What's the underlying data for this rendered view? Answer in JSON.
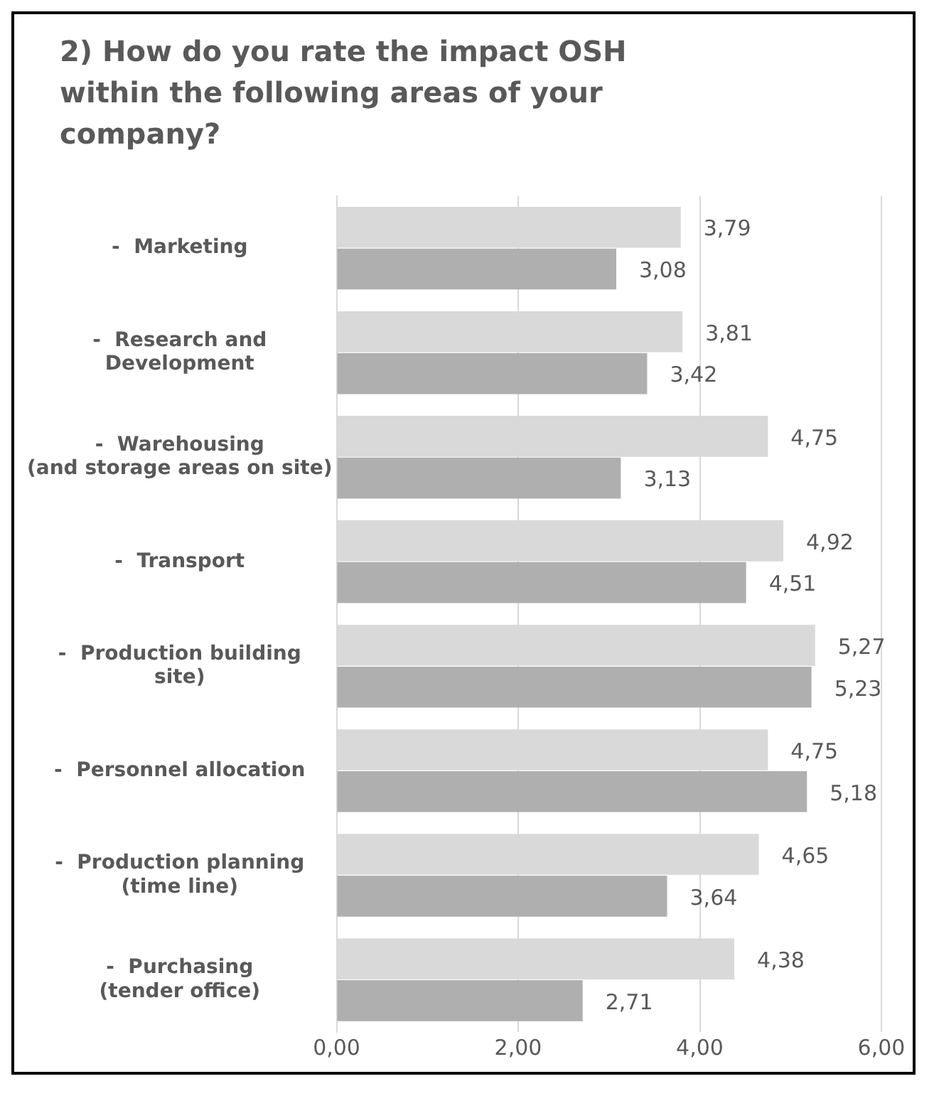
{
  "chart_data": {
    "type": "bar",
    "orientation": "horizontal",
    "title": "2) How do you rate the impact OSH within the following areas of your company?",
    "categories": [
      "-  Marketing",
      "-  Research and\nDevelopment",
      "-  Warehousing\n(and storage areas on site)",
      "-  Transport",
      "-  Production building\nsite)",
      "-  Personnel allocation",
      "-  Production planning\n(time line)",
      "-  Purchasing\n(tender office)"
    ],
    "series": [
      {
        "color": "#d9d9d9",
        "values": [
          3.79,
          3.81,
          4.75,
          4.92,
          5.27,
          4.75,
          4.65,
          4.38
        ],
        "value_labels": [
          "3,79",
          "3,81",
          "4,75",
          "4,92",
          "5,27",
          "4,75",
          "4,65",
          "4,38"
        ]
      },
      {
        "color": "#afafaf",
        "values": [
          3.08,
          3.42,
          3.13,
          4.51,
          5.23,
          5.18,
          3.64,
          2.71
        ],
        "value_labels": [
          "3,08",
          "3,42",
          "3,13",
          "4,51",
          "5,23",
          "5,18",
          "3,64",
          "2,71"
        ]
      }
    ],
    "xlim": [
      0,
      6
    ],
    "xticks": [
      {
        "value": 0,
        "label": "0,00"
      },
      {
        "value": 2,
        "label": "2,00"
      },
      {
        "value": 4,
        "label": "4,00"
      },
      {
        "value": 6,
        "label": "6,00"
      }
    ],
    "grid": "x",
    "legend": false
  }
}
